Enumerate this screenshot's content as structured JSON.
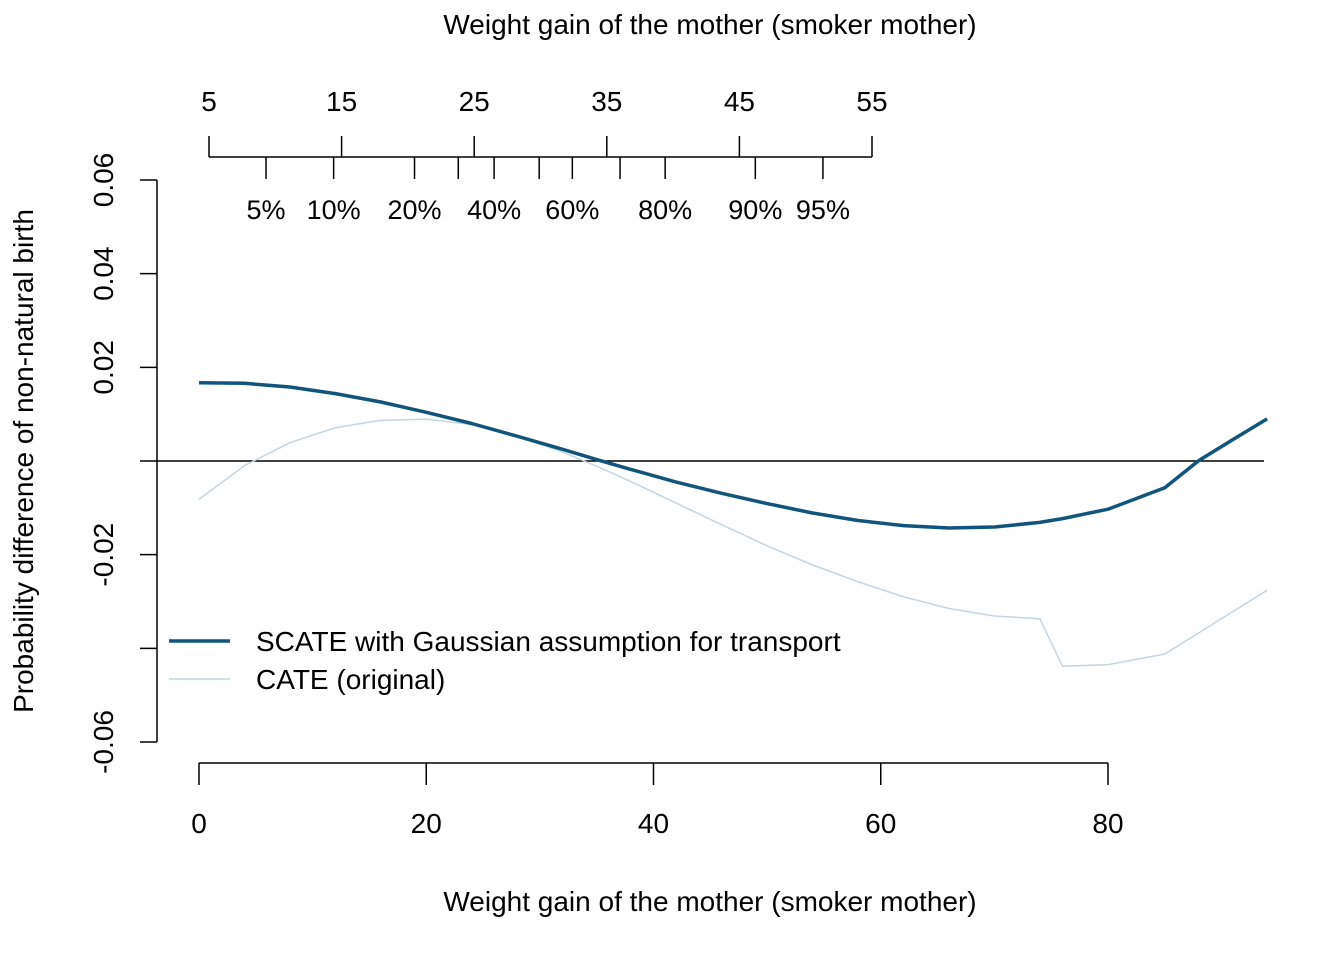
{
  "chart_data": {
    "type": "line",
    "xlabel": "Weight gain of the mother (smoker mother)",
    "ylabel": "Probability difference of non-natural birth",
    "xlim": [
      0,
      94
    ],
    "ylim": [
      -0.06,
      0.06
    ],
    "x_ticks": [
      0,
      20,
      40,
      60,
      80
    ],
    "y_ticks": [
      0.06,
      0.04,
      0.02,
      -0.02,
      -0.06
    ],
    "y_tick_labels": [
      "0.06",
      "0.04",
      "0.02",
      "-0.02",
      "-0.06"
    ],
    "y_minor_ticks": [
      0.0,
      -0.04
    ],
    "reference_line_y": 0,
    "top_axis": {
      "title": "Weight gain of the mother (smoker mother)",
      "ticks": [
        5,
        15,
        25,
        35,
        45,
        55
      ],
      "percentile_ticks": [
        {
          "label": "5%",
          "value": 9.3
        },
        {
          "label": "10%",
          "value": 14.4
        },
        {
          "label": "20%",
          "value": 20.5
        },
        {
          "label": "",
          "value": 23.8
        },
        {
          "label": "40%",
          "value": 26.5
        },
        {
          "label": "",
          "value": 29.9
        },
        {
          "label": "60%",
          "value": 32.4
        },
        {
          "label": "",
          "value": 36.0
        },
        {
          "label": "80%",
          "value": 39.4
        },
        {
          "label": "90%",
          "value": 46.2
        },
        {
          "label": "95%",
          "value": 51.3
        }
      ]
    },
    "series": [
      {
        "name": "SCATE with Gaussian assumption for transport",
        "color": "#11557c",
        "x": [
          0,
          4,
          8,
          12,
          16,
          20,
          24,
          28,
          32,
          35,
          38,
          42,
          46,
          50,
          54,
          58,
          62,
          66,
          70,
          74,
          76,
          80,
          85,
          88,
          91,
          94
        ],
        "y": [
          0.0167,
          0.0166,
          0.0158,
          0.0144,
          0.0126,
          0.0104,
          0.008,
          0.0053,
          0.0025,
          0.0003,
          -0.0018,
          -0.0045,
          -0.0069,
          -0.0091,
          -0.0111,
          -0.0127,
          -0.0138,
          -0.0143,
          -0.0141,
          -0.0131,
          -0.0123,
          -0.0103,
          -0.0057,
          0.0001,
          0.0046,
          0.009
        ]
      },
      {
        "name": "CATE (original)",
        "color": "#c2d5e2",
        "x": [
          0,
          4,
          8,
          12,
          16,
          20,
          24,
          28,
          32,
          35,
          38,
          42,
          46,
          50,
          54,
          58,
          62,
          66,
          70,
          74,
          76,
          80,
          85,
          94
        ],
        "y": [
          -0.0082,
          -0.001,
          0.0039,
          0.0071,
          0.0087,
          0.0089,
          0.0078,
          0.0053,
          0.0019,
          -0.0011,
          -0.0044,
          -0.009,
          -0.0136,
          -0.0181,
          -0.0222,
          -0.0258,
          -0.029,
          -0.0315,
          -0.0331,
          -0.0337,
          -0.0438,
          -0.0435,
          -0.0412,
          -0.0276
        ]
      }
    ],
    "legend": {
      "position": "bottom-left",
      "entries": [
        "SCATE with Gaussian assumption for transport",
        "CATE (original)"
      ]
    }
  }
}
